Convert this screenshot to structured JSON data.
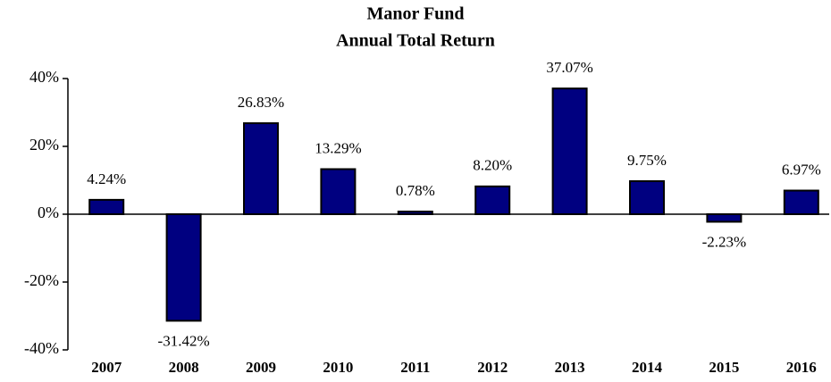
{
  "chart_data": {
    "type": "bar",
    "title": "Manor Fund",
    "subtitle": "Annual Total Return",
    "categories": [
      "2007",
      "2008",
      "2009",
      "2010",
      "2011",
      "2012",
      "2013",
      "2014",
      "2015",
      "2016"
    ],
    "values": [
      4.24,
      -31.42,
      26.83,
      13.29,
      0.78,
      8.2,
      37.07,
      9.75,
      -2.23,
      6.97
    ],
    "value_labels": [
      "4.24%",
      "-31.42%",
      "26.83%",
      "13.29%",
      "0.78%",
      "8.20%",
      "37.07%",
      "9.75%",
      "-2.23%",
      "6.97%"
    ],
    "color": "#000080",
    "ylim": [
      -40,
      40
    ],
    "yticks": [
      {
        "value": -40,
        "label": "-40%"
      },
      {
        "value": -20,
        "label": "-20%"
      },
      {
        "value": 0,
        "label": "0%"
      },
      {
        "value": 20,
        "label": "20%"
      },
      {
        "value": 40,
        "label": "40%"
      }
    ],
    "grid": false
  }
}
